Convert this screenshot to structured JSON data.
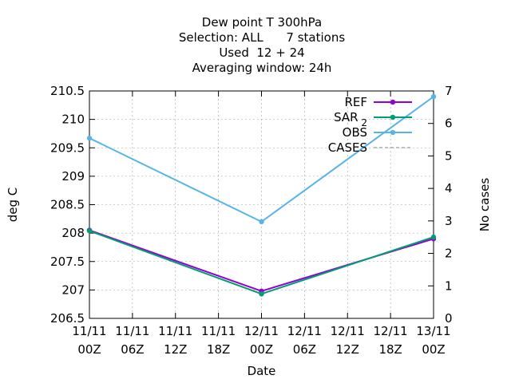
{
  "chart_data": {
    "type": "line",
    "title": [
      "Dew point T 300hPa",
      "Selection: ALL      7 stations",
      "Used  12 + 24",
      "Averaging window: 24h"
    ],
    "xlabel": "Date",
    "ylabel": "deg C",
    "y2label": "No cases",
    "x": [
      0,
      48
    ],
    "xlim": [
      0,
      48
    ],
    "xticks": [
      {
        "v": 0,
        "l1": "11/11",
        "l2": "00Z"
      },
      {
        "v": 6,
        "l1": "11/11",
        "l2": "06Z"
      },
      {
        "v": 12,
        "l1": "11/11",
        "l2": "12Z"
      },
      {
        "v": 18,
        "l1": "11/11",
        "l2": "18Z"
      },
      {
        "v": 24,
        "l1": "12/11",
        "l2": "00Z"
      },
      {
        "v": 30,
        "l1": "12/11",
        "l2": "06Z"
      },
      {
        "v": 36,
        "l1": "12/11",
        "l2": "12Z"
      },
      {
        "v": 42,
        "l1": "12/11",
        "l2": "18Z"
      },
      {
        "v": 48,
        "l1": "13/11",
        "l2": "00Z"
      }
    ],
    "ylim": [
      206.5,
      210.5
    ],
    "yticks": [
      "206.5",
      "207",
      "207.5",
      "208",
      "208.5",
      "209",
      "209.5",
      "210",
      "210.5"
    ],
    "y2lim": [
      0,
      7
    ],
    "y2ticks": [
      "0",
      "1",
      "2",
      "3",
      "4",
      "5",
      "6",
      "7"
    ],
    "grid": true,
    "legend_position": "top-right",
    "series": [
      {
        "name": "REF",
        "axis": "y",
        "color": "#9400d3",
        "x": [
          0,
          24,
          48
        ],
        "y": [
          208.05,
          206.98,
          207.9
        ]
      },
      {
        "name": "SAR",
        "name_sub": "2",
        "axis": "y",
        "color": "#009e73",
        "x": [
          0,
          24,
          48
        ],
        "y": [
          208.04,
          206.93,
          207.93
        ]
      },
      {
        "name": "OBS",
        "axis": "y",
        "color": "#56b4e9",
        "x": [
          0,
          24,
          48
        ],
        "y": [
          209.67,
          208.2,
          210.4
        ]
      },
      {
        "name": "CASES",
        "axis": "y2",
        "color": "#999999",
        "dashed": true,
        "x": [],
        "y": []
      }
    ]
  }
}
